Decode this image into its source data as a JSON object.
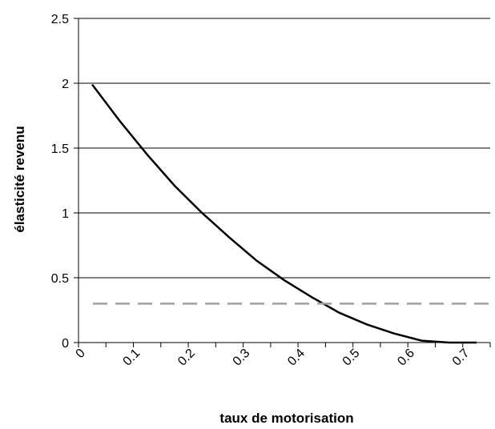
{
  "chart_data": {
    "type": "line",
    "title": "",
    "xlabel": "taux de motorisation",
    "ylabel": "élasticité revenu",
    "xlim": [
      0,
      0.75
    ],
    "ylim": [
      0,
      2.5
    ],
    "x_ticks": [
      "0",
      "0.1",
      "0.2",
      "0.3",
      "0.4",
      "0.5",
      "0.6",
      "0.7"
    ],
    "y_ticks": [
      "0",
      "0.5",
      "1",
      "1.5",
      "2",
      "2.5"
    ],
    "grid": "horizontal",
    "legend": "none",
    "series": [
      {
        "style": "solid",
        "color": "#000000",
        "x": [
          0.025,
          0.075,
          0.125,
          0.175,
          0.225,
          0.275,
          0.325,
          0.375,
          0.425,
          0.475,
          0.525,
          0.575,
          0.625,
          0.675,
          0.725
        ],
        "y": [
          1.99,
          1.71,
          1.45,
          1.21,
          1.0,
          0.81,
          0.63,
          0.48,
          0.35,
          0.23,
          0.14,
          0.07,
          0.015,
          0.0,
          0.0
        ]
      },
      {
        "style": "dashed",
        "color": "#a0a0a0",
        "x": [
          0.0,
          0.75
        ],
        "y": [
          0.3,
          0.3
        ]
      }
    ]
  }
}
